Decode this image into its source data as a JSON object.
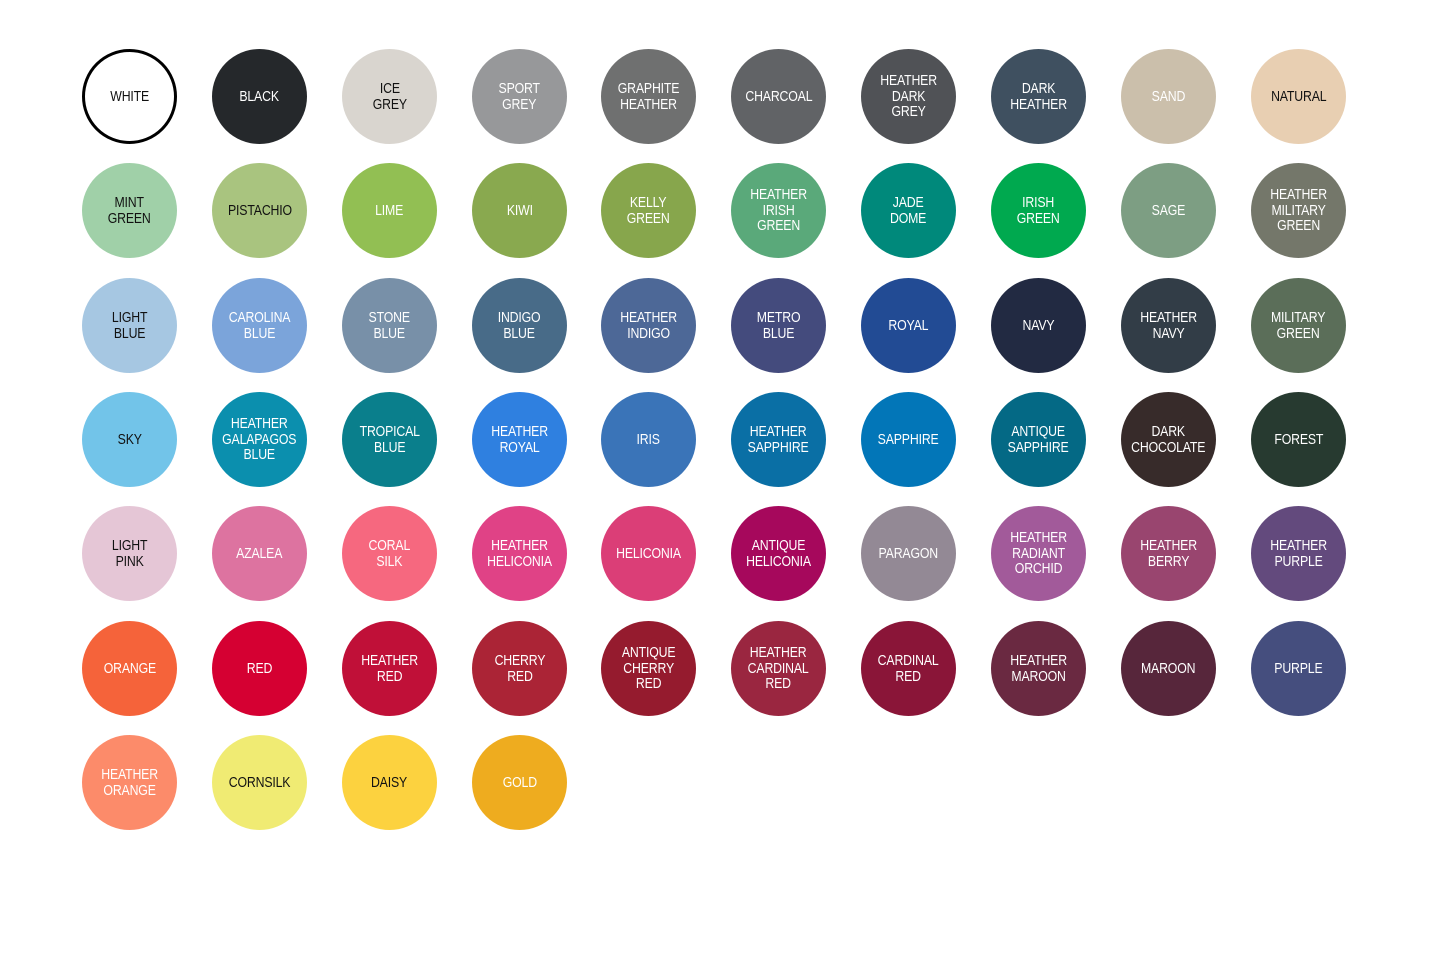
{
  "swatches": [
    {
      "name": "WHITE",
      "lines": [
        "WHITE"
      ],
      "color": "#ffffff",
      "text": "#111111",
      "outlined": true
    },
    {
      "name": "BLACK",
      "lines": [
        "BLACK"
      ],
      "color": "#25282b",
      "text": "#ffffff"
    },
    {
      "name": "ICE GREY",
      "lines": [
        "ICE",
        "GREY"
      ],
      "color": "#d9d5cf",
      "text": "#111111"
    },
    {
      "name": "SPORT GREY",
      "lines": [
        "SPORT",
        "GREY"
      ],
      "color": "#97989a",
      "text": "#ffffff"
    },
    {
      "name": "GRAPHITE HEATHER",
      "lines": [
        "GRAPHITE",
        "HEATHER"
      ],
      "color": "#6f7070",
      "text": "#ffffff"
    },
    {
      "name": "CHARCOAL",
      "lines": [
        "CHARCOAL"
      ],
      "color": "#616366",
      "text": "#ffffff"
    },
    {
      "name": "HEATHER DARK GREY",
      "lines": [
        "HEATHER",
        "DARK",
        "GREY"
      ],
      "color": "#505256",
      "text": "#ffffff"
    },
    {
      "name": "DARK HEATHER",
      "lines": [
        "DARK",
        "HEATHER"
      ],
      "color": "#3f5060",
      "text": "#ffffff"
    },
    {
      "name": "SAND",
      "lines": [
        "SAND"
      ],
      "color": "#cbbfab",
      "text": "#ffffff"
    },
    {
      "name": "NATURAL",
      "lines": [
        "NATURAL"
      ],
      "color": "#e8cfb2",
      "text": "#111111"
    },
    {
      "name": "MINT GREEN",
      "lines": [
        "MINT",
        "GREEN"
      ],
      "color": "#a0d0a8",
      "text": "#111111"
    },
    {
      "name": "PISTACHIO",
      "lines": [
        "PISTACHIO"
      ],
      "color": "#a9c47f",
      "text": "#111111"
    },
    {
      "name": "LIME",
      "lines": [
        "LIME"
      ],
      "color": "#92bf53",
      "text": "#ffffff"
    },
    {
      "name": "KIWI",
      "lines": [
        "KIWI"
      ],
      "color": "#89a94f",
      "text": "#ffffff"
    },
    {
      "name": "KELLY GREEN",
      "lines": [
        "KELLY",
        "GREEN"
      ],
      "color": "#87a64c",
      "text": "#ffffff"
    },
    {
      "name": "HEATHER IRISH GREEN",
      "lines": [
        "HEATHER",
        "IRISH",
        "GREEN"
      ],
      "color": "#5aa97a",
      "text": "#ffffff"
    },
    {
      "name": "JADE DOME",
      "lines": [
        "JADE",
        "DOME"
      ],
      "color": "#00897b",
      "text": "#ffffff"
    },
    {
      "name": "IRISH GREEN",
      "lines": [
        "IRISH",
        "GREEN"
      ],
      "color": "#00a94f",
      "text": "#ffffff"
    },
    {
      "name": "SAGE",
      "lines": [
        "SAGE"
      ],
      "color": "#7d9e83",
      "text": "#ffffff"
    },
    {
      "name": "HEATHER MILITARY GREEN",
      "lines": [
        "HEATHER",
        "MILITARY",
        "GREEN"
      ],
      "color": "#74776a",
      "text": "#ffffff"
    },
    {
      "name": "LIGHT BLUE",
      "lines": [
        "LIGHT",
        "BLUE"
      ],
      "color": "#a6c7e2",
      "text": "#111111"
    },
    {
      "name": "CAROLINA BLUE",
      "lines": [
        "CAROLINA",
        "BLUE"
      ],
      "color": "#7ba4da",
      "text": "#ffffff"
    },
    {
      "name": "STONE BLUE",
      "lines": [
        "STONE",
        "BLUE"
      ],
      "color": "#7890a8",
      "text": "#ffffff"
    },
    {
      "name": "INDIGO BLUE",
      "lines": [
        "INDIGO",
        "BLUE"
      ],
      "color": "#486b88",
      "text": "#ffffff"
    },
    {
      "name": "HEATHER INDIGO",
      "lines": [
        "HEATHER",
        "INDIGO"
      ],
      "color": "#4d6897",
      "text": "#ffffff"
    },
    {
      "name": "METRO BLUE",
      "lines": [
        "METRO",
        "BLUE"
      ],
      "color": "#444b7d",
      "text": "#ffffff"
    },
    {
      "name": "ROYAL",
      "lines": [
        "ROYAL"
      ],
      "color": "#224b94",
      "text": "#ffffff"
    },
    {
      "name": "NAVY",
      "lines": [
        "NAVY"
      ],
      "color": "#222a42",
      "text": "#ffffff"
    },
    {
      "name": "HEATHER NAVY",
      "lines": [
        "HEATHER",
        "NAVY"
      ],
      "color": "#323d47",
      "text": "#ffffff"
    },
    {
      "name": "MILITARY GREEN",
      "lines": [
        "MILITARY",
        "GREEN"
      ],
      "color": "#5b6e59",
      "text": "#ffffff"
    },
    {
      "name": "SKY",
      "lines": [
        "SKY"
      ],
      "color": "#72c4e9",
      "text": "#111111"
    },
    {
      "name": "HEATHER GALAPAGOS BLUE",
      "lines": [
        "HEATHER",
        "GALAPAGOS",
        "BLUE"
      ],
      "color": "#0b8fae",
      "text": "#ffffff"
    },
    {
      "name": "TROPICAL BLUE",
      "lines": [
        "TROPICAL",
        "BLUE"
      ],
      "color": "#0a7f8c",
      "text": "#ffffff"
    },
    {
      "name": "HEATHER ROYAL",
      "lines": [
        "HEATHER",
        "ROYAL"
      ],
      "color": "#2f80e0",
      "text": "#ffffff"
    },
    {
      "name": "IRIS",
      "lines": [
        "IRIS"
      ],
      "color": "#3a74b8",
      "text": "#ffffff"
    },
    {
      "name": "HEATHER SAPPHIRE",
      "lines": [
        "HEATHER",
        "SAPPHIRE"
      ],
      "color": "#0a6fa5",
      "text": "#ffffff"
    },
    {
      "name": "SAPPHIRE",
      "lines": [
        "SAPPHIRE"
      ],
      "color": "#0276b8",
      "text": "#ffffff"
    },
    {
      "name": "ANTIQUE SAPPHIRE",
      "lines": [
        "ANTIQUE",
        "SAPPHIRE"
      ],
      "color": "#046985",
      "text": "#ffffff"
    },
    {
      "name": "DARK CHOCOLATE",
      "lines": [
        "DARK",
        "CHOCOLATE"
      ],
      "color": "#372b2a",
      "text": "#ffffff"
    },
    {
      "name": "FOREST",
      "lines": [
        "FOREST"
      ],
      "color": "#273a30",
      "text": "#ffffff"
    },
    {
      "name": "LIGHT PINK",
      "lines": [
        "LIGHT",
        "PINK"
      ],
      "color": "#e5c6d6",
      "text": "#111111"
    },
    {
      "name": "AZALEA",
      "lines": [
        "AZALEA"
      ],
      "color": "#dd73a0",
      "text": "#ffffff"
    },
    {
      "name": "CORAL SILK",
      "lines": [
        "CORAL",
        "SILK"
      ],
      "color": "#f6687f",
      "text": "#ffffff"
    },
    {
      "name": "HEATHER HELICONIA",
      "lines": [
        "HEATHER",
        "HELICONIA"
      ],
      "color": "#e04286",
      "text": "#ffffff"
    },
    {
      "name": "HELICONIA",
      "lines": [
        "HELICONIA"
      ],
      "color": "#db3e77",
      "text": "#ffffff"
    },
    {
      "name": "ANTIQUE HELICONIA",
      "lines": [
        "ANTIQUE",
        "HELICONIA"
      ],
      "color": "#a6085c",
      "text": "#ffffff"
    },
    {
      "name": "PARAGON",
      "lines": [
        "PARAGON"
      ],
      "color": "#938995",
      "text": "#ffffff"
    },
    {
      "name": "HEATHER RADIANT ORCHID",
      "lines": [
        "HEATHER",
        "RADIANT",
        "ORCHID"
      ],
      "color": "#a25a9a",
      "text": "#ffffff"
    },
    {
      "name": "HEATHER BERRY",
      "lines": [
        "HEATHER",
        "BERRY"
      ],
      "color": "#99456f",
      "text": "#ffffff"
    },
    {
      "name": "HEATHER PURPLE",
      "lines": [
        "HEATHER",
        "PURPLE"
      ],
      "color": "#634a7d",
      "text": "#ffffff"
    },
    {
      "name": "ORANGE",
      "lines": [
        "ORANGE"
      ],
      "color": "#f5633a",
      "text": "#ffffff"
    },
    {
      "name": "RED",
      "lines": [
        "RED"
      ],
      "color": "#d50032",
      "text": "#ffffff"
    },
    {
      "name": "HEATHER RED",
      "lines": [
        "HEATHER",
        "RED"
      ],
      "color": "#c01038",
      "text": "#ffffff"
    },
    {
      "name": "CHERRY RED",
      "lines": [
        "CHERRY",
        "RED"
      ],
      "color": "#ab2436",
      "text": "#ffffff"
    },
    {
      "name": "ANTIQUE CHERRY RED",
      "lines": [
        "ANTIQUE",
        "CHERRY",
        "RED"
      ],
      "color": "#951b2e",
      "text": "#ffffff"
    },
    {
      "name": "HEATHER CARDINAL RED",
      "lines": [
        "HEATHER",
        "CARDINAL",
        "RED"
      ],
      "color": "#9a2640",
      "text": "#ffffff"
    },
    {
      "name": "CARDINAL RED",
      "lines": [
        "CARDINAL",
        "RED"
      ],
      "color": "#8a1538",
      "text": "#ffffff"
    },
    {
      "name": "HEATHER MAROON",
      "lines": [
        "HEATHER",
        "MAROON"
      ],
      "color": "#6a2941",
      "text": "#ffffff"
    },
    {
      "name": "MAROON",
      "lines": [
        "MAROON"
      ],
      "color": "#57263b",
      "text": "#ffffff"
    },
    {
      "name": "PURPLE",
      "lines": [
        "PURPLE"
      ],
      "color": "#454e7e",
      "text": "#ffffff"
    },
    {
      "name": "HEATHER ORANGE",
      "lines": [
        "HEATHER",
        "ORANGE"
      ],
      "color": "#fc8b6a",
      "text": "#ffffff"
    },
    {
      "name": "CORNSILK",
      "lines": [
        "CORNSILK"
      ],
      "color": "#f0eb73",
      "text": "#111111"
    },
    {
      "name": "DAISY",
      "lines": [
        "DAISY"
      ],
      "color": "#fcd23f",
      "text": "#111111"
    },
    {
      "name": "GOLD",
      "lines": [
        "GOLD"
      ],
      "color": "#eeac1f",
      "text": "#ffffff"
    }
  ]
}
